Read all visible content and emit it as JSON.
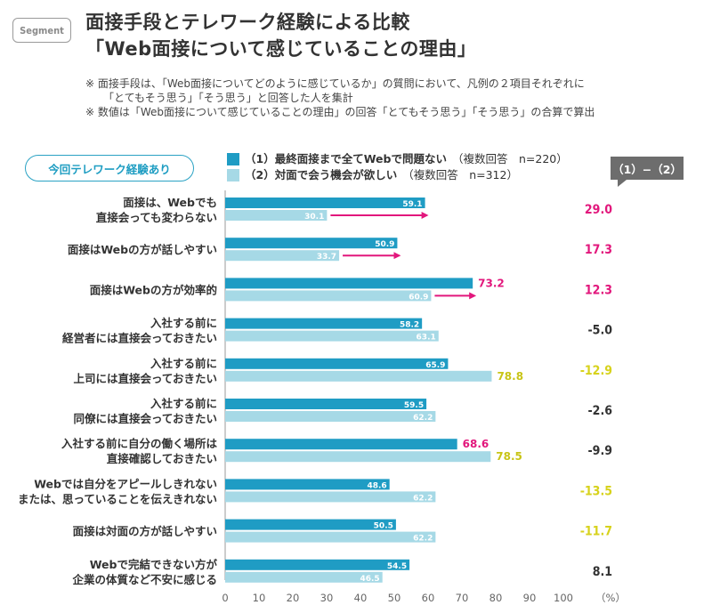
{
  "logo_text": "Segment",
  "title_line1": "面接手段とテレワーク経験による比較",
  "title_line2": "「Web面接について感じていることの理由」",
  "notes": [
    "※ 面接手段は、「Web面接についてどのように感じているか」の質問において、凡例の２項目それぞれに",
    "「とてもそう思う」「そう思う」と回答した人を集計",
    "※ 数値は「Web面接について感じていることの理由」の回答「とてもそう思う」「そう思う」の合算で算出"
  ],
  "badge": "今回テレワーク経験あり",
  "legend": [
    {
      "bold": "（1）最終面接まで全てWebで問題ない",
      "rest": "（複数回答　n=220）",
      "color": "#1f9cc4"
    },
    {
      "bold": "（2）対面で会う機会が欲しい",
      "rest": "（複数回答　n=312）",
      "color": "#a6d9e6"
    }
  ],
  "diff_header": "（1）−（2）",
  "colors": {
    "series1": "#1f9cc4",
    "series2": "#a6d9e6",
    "arrow": "#e2177c",
    "diff_positive": "#e2177c",
    "diff_negative_yellow": "#d7d21c",
    "diff_neutral": "#333333",
    "label_yellow": "#c8c416"
  },
  "chart_data": {
    "type": "bar",
    "orientation": "horizontal",
    "xlim": [
      0,
      100
    ],
    "xticks": [
      0,
      10,
      20,
      30,
      40,
      50,
      60,
      70,
      80,
      90,
      100
    ],
    "unit_label": "（%）",
    "categories": [
      [
        "面接は、Webでも",
        "直接会っても変わらない"
      ],
      [
        "面接はWebの方が話しやすい"
      ],
      [
        "面接はWebの方が効率的"
      ],
      [
        "入社する前に",
        "経営者には直接会っておきたい"
      ],
      [
        "入社する前に",
        "上司には直接会っておきたい"
      ],
      [
        "入社する前に",
        "同僚には直接会っておきたい"
      ],
      [
        "入社する前に自分の働く場所は",
        "直接確認しておきたい"
      ],
      [
        "Webでは自分をアピールしきれない",
        "または、思っていることを伝えきれない"
      ],
      [
        "面接は対面の方が話しやすい"
      ],
      [
        "Webで完結できない方が",
        "企業の体質など不安に感じる"
      ]
    ],
    "series": [
      {
        "name": "（1）最終面接まで全てWebで問題ない",
        "values": [
          59.1,
          50.9,
          73.2,
          58.2,
          65.9,
          59.5,
          68.6,
          48.6,
          50.5,
          54.5
        ]
      },
      {
        "name": "（2）対面で会う機会が欲しい",
        "values": [
          30.1,
          33.7,
          60.9,
          63.1,
          78.8,
          62.2,
          78.5,
          62.2,
          62.2,
          46.5
        ]
      }
    ],
    "value_labels_1": [
      "59.1",
      "50.9",
      "73.2",
      "58.2",
      "65.9",
      "59.5",
      "68.6",
      "48.6",
      "50.5",
      "54.5"
    ],
    "value_labels_2": [
      "30.1",
      "33.7",
      "60.9",
      "63.1",
      "78.8",
      "62.2",
      "78.5",
      "62.2",
      "62.2",
      "46.5"
    ],
    "outside_label_1": [
      false,
      false,
      true,
      false,
      false,
      false,
      true,
      false,
      false,
      false
    ],
    "outside_label_2": [
      false,
      false,
      false,
      false,
      true,
      false,
      true,
      false,
      false,
      false
    ],
    "differences": [
      "29.0",
      "17.3",
      "12.3",
      "-5.0",
      "-12.9",
      "-2.6",
      "-9.9",
      "-13.5",
      "-11.7",
      "8.1"
    ],
    "difference_style": [
      "positive",
      "positive",
      "positive",
      "neutral",
      "yellow",
      "neutral",
      "neutral",
      "yellow",
      "yellow",
      "neutral"
    ],
    "arrows": [
      true,
      true,
      true,
      false,
      false,
      false,
      false,
      false,
      false,
      false
    ]
  }
}
